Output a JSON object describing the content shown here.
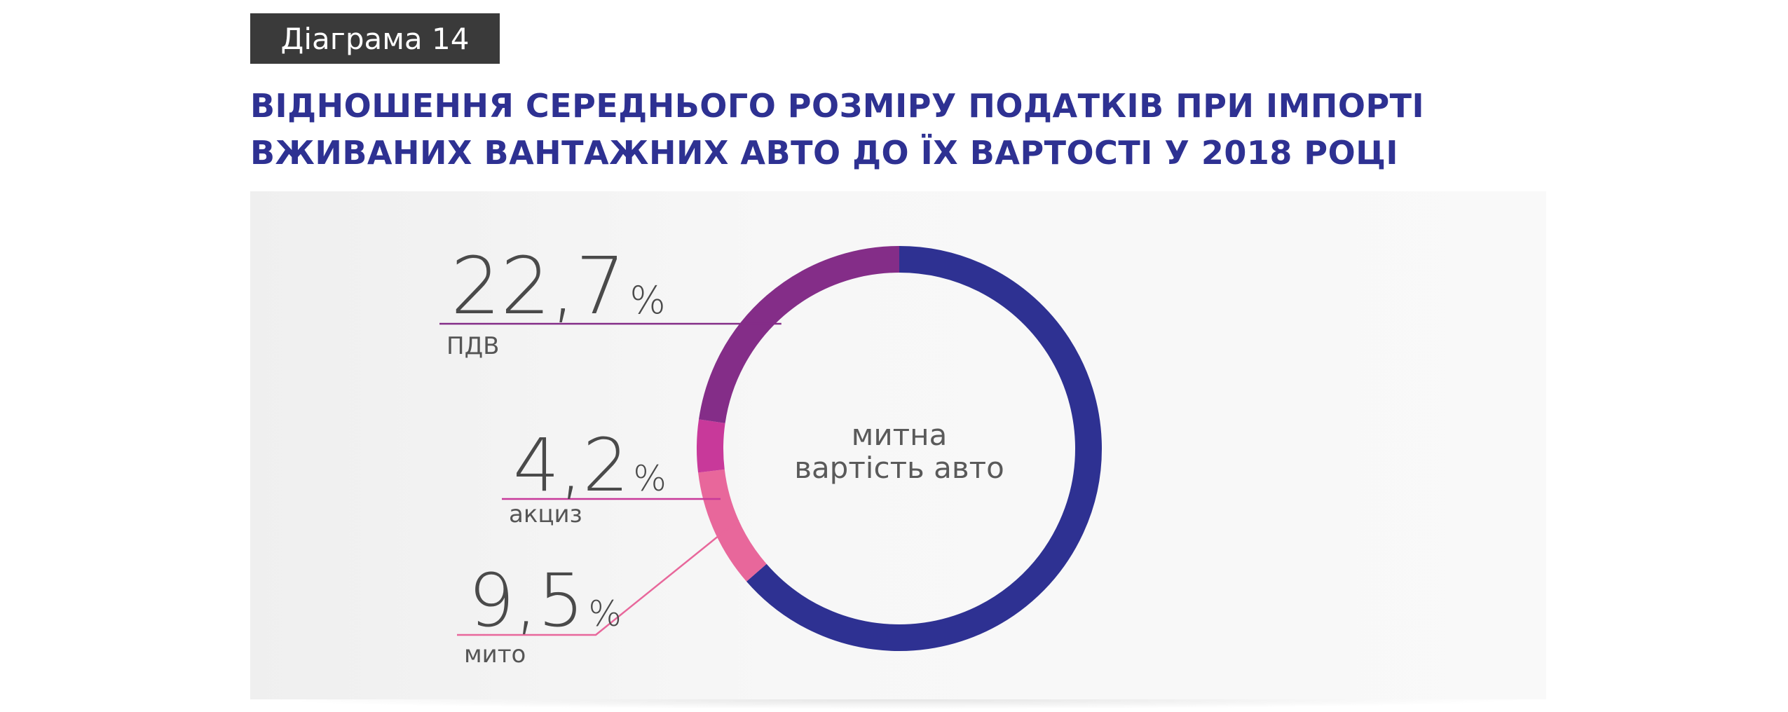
{
  "badge": "Діаграма 14",
  "title_lines": [
    "ВІДНОШЕННЯ СЕРЕДНЬОГО РОЗМІРУ ПОДАТКІВ ПРИ ІМПОРТІ",
    "ВЖИВАНИХ ВАНТАЖНИХ АВТО ДО ЇХ ВАРТОСТІ У 2018 РОЦІ"
  ],
  "chart_data": {
    "type": "pie",
    "title": "ВІДНОШЕННЯ СЕРЕДНЬОГО РОЗМІРУ ПОДАТКІВ ПРИ ІМПОРТІ ВЖИВАНИХ ВАНТАЖНИХ АВТО ДО ЇХ ВАРТОСТІ У 2018 РОЦІ",
    "center_label": [
      "митна",
      "вартість авто"
    ],
    "slices": [
      {
        "label": "ПДВ",
        "value": 22.7,
        "value_text": "22,7",
        "unit": "%",
        "color": "#842d88"
      },
      {
        "label": "акциз",
        "value": 4.2,
        "value_text": "4,2",
        "unit": "%",
        "color": "#c8399a"
      },
      {
        "label": "мито",
        "value": 9.5,
        "value_text": "9,5",
        "unit": "%",
        "color": "#e8679b"
      }
    ],
    "remainder_color": "#2e3192"
  },
  "colors": {
    "title": "#2e3192",
    "badge_bg": "#3a3a3a"
  }
}
